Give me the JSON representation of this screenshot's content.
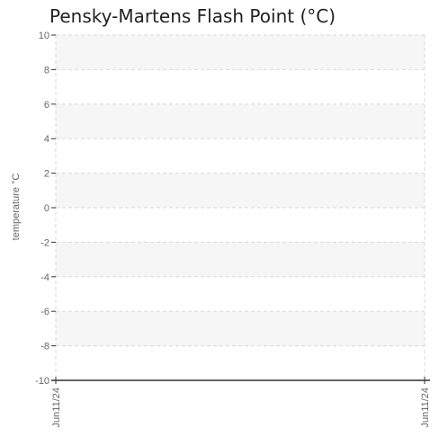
{
  "chart_data": {
    "type": "line",
    "title": "Pensky-Martens Flash Point (°C)",
    "xlabel": "",
    "ylabel": "temperature °C",
    "x_ticks": [
      "Jun11/24",
      "Jun11/24"
    ],
    "y_ticks": [
      10,
      8,
      6,
      4,
      2,
      0,
      -2,
      -4,
      -6,
      -8,
      -10
    ],
    "ylim": [
      -10,
      10
    ],
    "grid": true,
    "series": []
  },
  "colors": {
    "axis": "#333333",
    "grid": "#d9d9d9",
    "band": "#f6f6f6",
    "tick_text": "#666666"
  }
}
